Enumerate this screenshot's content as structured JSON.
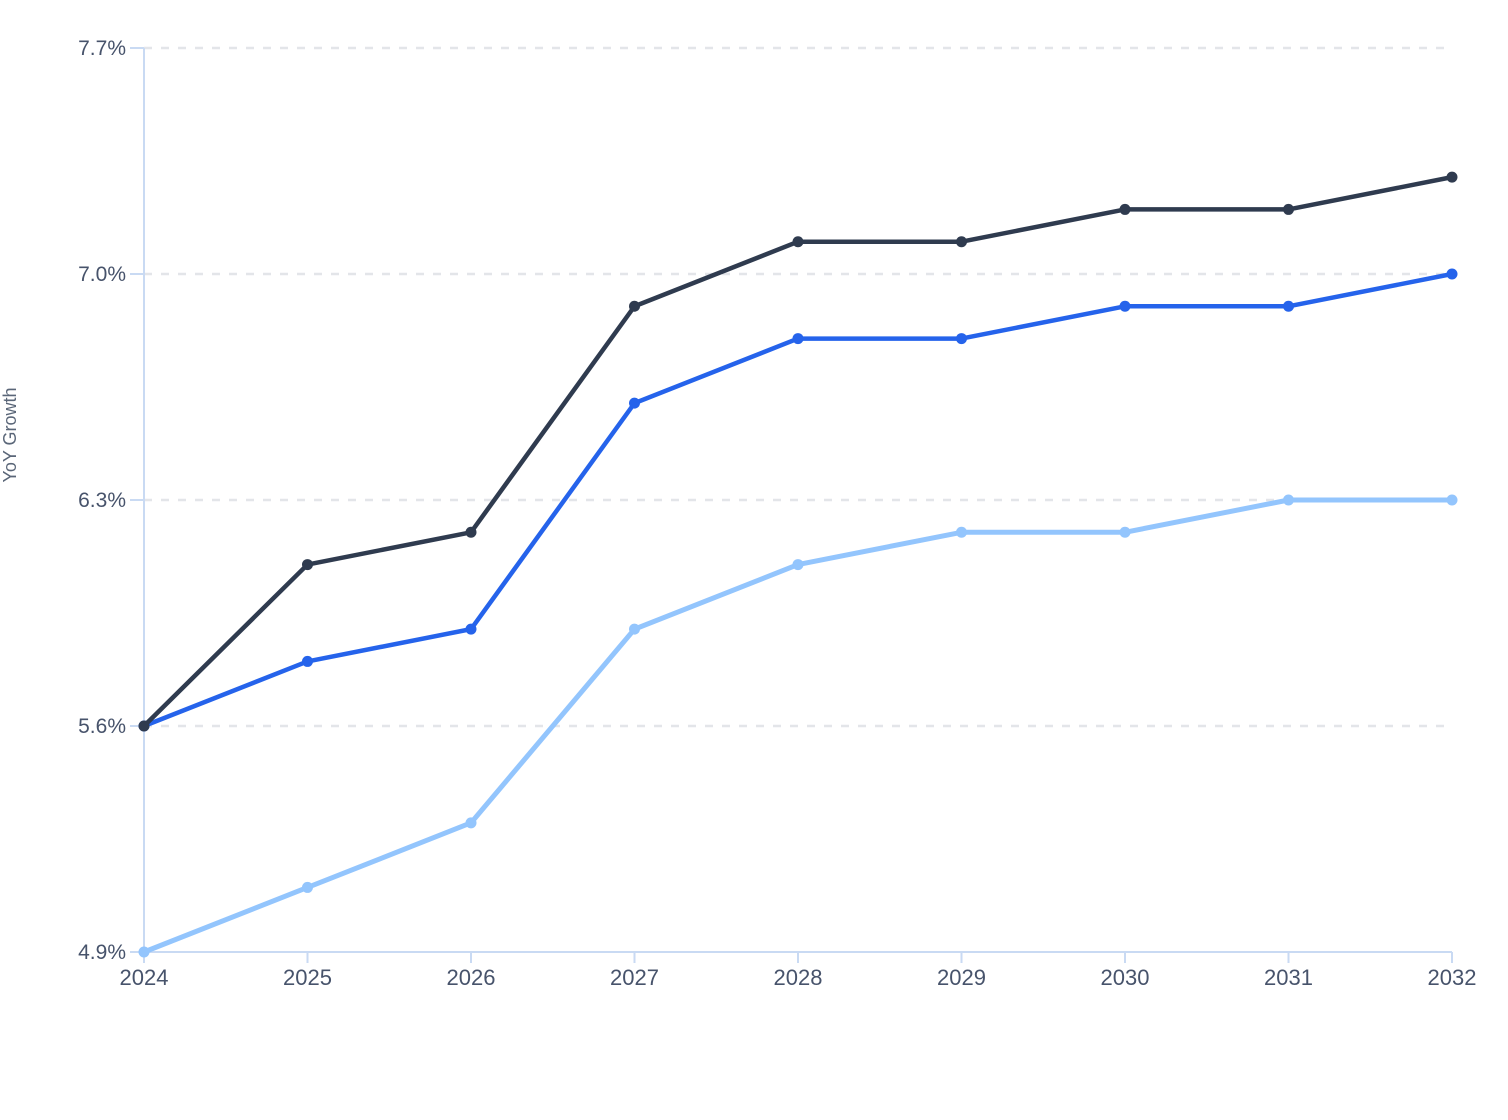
{
  "chart_data": {
    "type": "line",
    "title": "",
    "xlabel": "",
    "ylabel": "YoY Growth",
    "x": [
      "2024",
      "2025",
      "2026",
      "2027",
      "2028",
      "2029",
      "2030",
      "2031",
      "2032"
    ],
    "series": [
      {
        "name": "dark-navy-series",
        "color": "#2f3b4f",
        "values": [
          5.6,
          6.1,
          6.2,
          6.9,
          7.1,
          7.1,
          7.2,
          7.2,
          7.3
        ]
      },
      {
        "name": "blue-series",
        "color": "#2563eb",
        "values": [
          5.6,
          5.8,
          5.9,
          6.6,
          6.8,
          6.8,
          6.9,
          6.9,
          7.0
        ]
      },
      {
        "name": "light-blue-series",
        "color": "#93c5fd",
        "values": [
          4.9,
          5.1,
          5.3,
          5.9,
          6.1,
          6.2,
          6.2,
          6.3,
          6.3
        ]
      }
    ],
    "yticks": [
      4.9,
      5.6,
      6.3,
      7.0,
      7.7
    ],
    "ytick_labels": [
      "4.9%",
      "5.6%",
      "6.3%",
      "7.0%",
      "7.7%"
    ],
    "ylim": [
      4.9,
      7.7
    ],
    "grid": "horizontal-dashed",
    "legend": "none",
    "markers": true
  },
  "style": {
    "background": "#ffffff",
    "axis_line_color": "#c9daf3",
    "grid_line_color": "#e3e5e9",
    "tick_label_color": "#47536b",
    "axis_label_color": "#5a6678"
  }
}
